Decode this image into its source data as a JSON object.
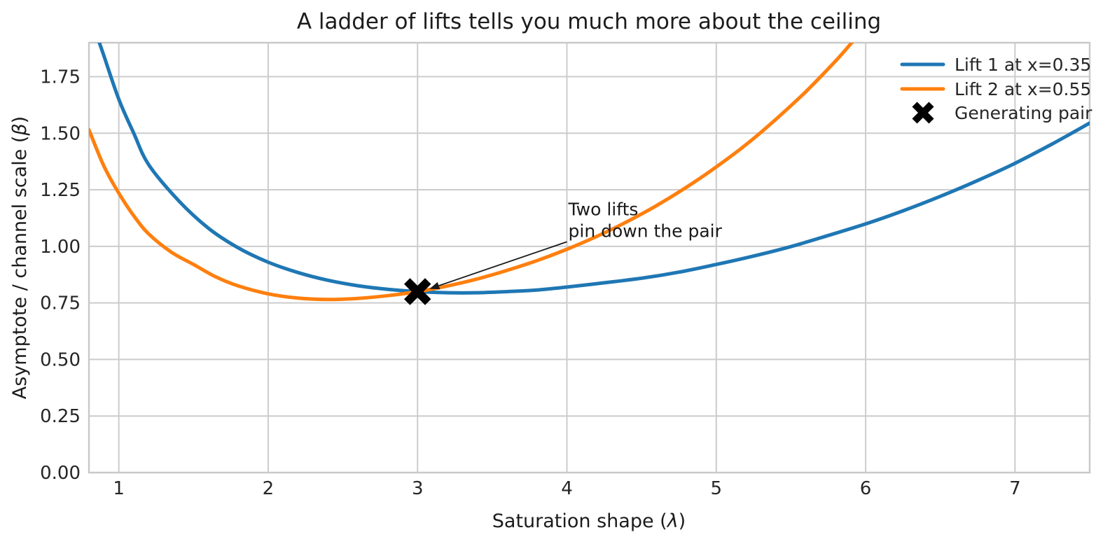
{
  "chart_data": {
    "type": "line",
    "title": "A ladder of lifts tells you much more about the ceiling",
    "xlabel": "Saturation shape (λ)",
    "ylabel": "Asymptote / channel scale (β)",
    "xlim": [
      0.8,
      7.5
    ],
    "ylim": [
      0,
      1.9
    ],
    "grid": true,
    "legend_position": "upper right",
    "x_ticks": [
      1,
      2,
      3,
      4,
      5,
      6,
      7
    ],
    "x_tick_labels": [
      "1",
      "2",
      "3",
      "4",
      "5",
      "6",
      "7"
    ],
    "y_ticks": [
      0,
      0.25,
      0.5,
      0.75,
      1.0,
      1.25,
      1.5,
      1.75
    ],
    "y_tick_labels": [
      "0.00",
      "0.25",
      "0.50",
      "0.75",
      "1.00",
      "1.25",
      "1.50",
      "1.75"
    ],
    "series": [
      {
        "name": "Lift 1 at x=0.35",
        "color": "#1f77b4",
        "points": [
          [
            0.87,
            1.9
          ],
          [
            0.9,
            1.843
          ],
          [
            1.0,
            1.65
          ],
          [
            1.1,
            1.5
          ],
          [
            1.2,
            1.361
          ],
          [
            1.4,
            1.202
          ],
          [
            1.6,
            1.08
          ],
          [
            1.8,
            0.993
          ],
          [
            2.0,
            0.93
          ],
          [
            2.2,
            0.884
          ],
          [
            2.4,
            0.85
          ],
          [
            2.6,
            0.826
          ],
          [
            2.8,
            0.81
          ],
          [
            3.0,
            0.8
          ],
          [
            3.2,
            0.795
          ],
          [
            3.4,
            0.795
          ],
          [
            3.6,
            0.8
          ],
          [
            3.8,
            0.807
          ],
          [
            4.0,
            0.82
          ],
          [
            4.25,
            0.839
          ],
          [
            4.5,
            0.859
          ],
          [
            4.75,
            0.886
          ],
          [
            5.0,
            0.92
          ],
          [
            5.25,
            0.957
          ],
          [
            5.5,
            0.999
          ],
          [
            5.75,
            1.048
          ],
          [
            6.0,
            1.099
          ],
          [
            6.25,
            1.157
          ],
          [
            6.5,
            1.221
          ],
          [
            6.75,
            1.291
          ],
          [
            7.0,
            1.367
          ],
          [
            7.25,
            1.453
          ],
          [
            7.5,
            1.545
          ]
        ]
      },
      {
        "name": "Lift 2 at x=0.55",
        "color": "#ff7f0e",
        "points": [
          [
            0.8,
            1.515
          ],
          [
            0.9,
            1.355
          ],
          [
            1.0,
            1.235
          ],
          [
            1.1,
            1.135
          ],
          [
            1.2,
            1.055
          ],
          [
            1.35,
            0.975
          ],
          [
            1.5,
            0.92
          ],
          [
            1.65,
            0.865
          ],
          [
            1.8,
            0.825
          ],
          [
            2.0,
            0.79
          ],
          [
            2.2,
            0.771
          ],
          [
            2.4,
            0.765
          ],
          [
            2.6,
            0.77
          ],
          [
            2.8,
            0.782
          ],
          [
            3.0,
            0.8
          ],
          [
            3.2,
            0.825
          ],
          [
            3.4,
            0.856
          ],
          [
            3.6,
            0.894
          ],
          [
            3.8,
            0.937
          ],
          [
            4.0,
            0.987
          ],
          [
            4.2,
            1.044
          ],
          [
            4.4,
            1.108
          ],
          [
            4.6,
            1.18
          ],
          [
            4.8,
            1.261
          ],
          [
            5.0,
            1.351
          ],
          [
            5.2,
            1.45
          ],
          [
            5.4,
            1.562
          ],
          [
            5.6,
            1.684
          ],
          [
            5.8,
            1.82
          ],
          [
            5.92,
            1.91
          ]
        ]
      }
    ],
    "generating_pair": {
      "label": "Generating pair",
      "x": 3.0,
      "y": 0.8,
      "color": "#000000",
      "marker": "X"
    },
    "annotation": {
      "text_lines": [
        "Two lifts",
        "pin down the pair"
      ],
      "text_xy": [
        4.0,
        1.02
      ],
      "target_xy": [
        3.08,
        0.812
      ],
      "color": "#1a1a1a"
    }
  },
  "legend": {
    "items": [
      {
        "label": "Lift 1 at x=0.35",
        "swatch": "line",
        "color": "#1f77b4"
      },
      {
        "label": "Lift 2 at x=0.55",
        "swatch": "line",
        "color": "#ff7f0e"
      },
      {
        "label": "Generating pair",
        "swatch": "x-marker",
        "color": "#000000"
      }
    ]
  },
  "style": {
    "background": "#ffffff",
    "grid_color": "#cccccc",
    "spine_color": "#c9c9c9",
    "text_color": "#262626",
    "tick_color": "#262626"
  }
}
